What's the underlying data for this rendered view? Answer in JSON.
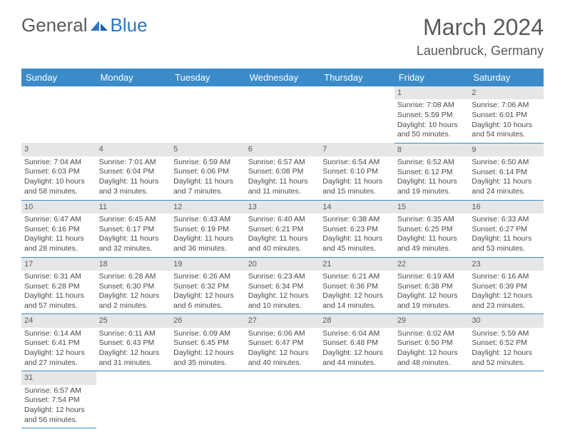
{
  "logo": {
    "text1": "General",
    "text2": "Blue"
  },
  "title": "March 2024",
  "location": "Lauenbruck, Germany",
  "colors": {
    "header_bg": "#3b8bc9",
    "header_text": "#ffffff",
    "daynum_bg": "#e6e6e6",
    "border": "#3b8bc9",
    "text": "#4a4a4a",
    "logo_accent": "#2b77c0"
  },
  "weekdays": [
    "Sunday",
    "Monday",
    "Tuesday",
    "Wednesday",
    "Thursday",
    "Friday",
    "Saturday"
  ],
  "weeks": [
    [
      null,
      null,
      null,
      null,
      null,
      {
        "d": "1",
        "sunrise": "7:08 AM",
        "sunset": "5:59 PM",
        "daylight": "10 hours and 50 minutes."
      },
      {
        "d": "2",
        "sunrise": "7:06 AM",
        "sunset": "6:01 PM",
        "daylight": "10 hours and 54 minutes."
      }
    ],
    [
      {
        "d": "3",
        "sunrise": "7:04 AM",
        "sunset": "6:03 PM",
        "daylight": "10 hours and 58 minutes."
      },
      {
        "d": "4",
        "sunrise": "7:01 AM",
        "sunset": "6:04 PM",
        "daylight": "11 hours and 3 minutes."
      },
      {
        "d": "5",
        "sunrise": "6:59 AM",
        "sunset": "6:06 PM",
        "daylight": "11 hours and 7 minutes."
      },
      {
        "d": "6",
        "sunrise": "6:57 AM",
        "sunset": "6:08 PM",
        "daylight": "11 hours and 11 minutes."
      },
      {
        "d": "7",
        "sunrise": "6:54 AM",
        "sunset": "6:10 PM",
        "daylight": "11 hours and 15 minutes."
      },
      {
        "d": "8",
        "sunrise": "6:52 AM",
        "sunset": "6:12 PM",
        "daylight": "11 hours and 19 minutes."
      },
      {
        "d": "9",
        "sunrise": "6:50 AM",
        "sunset": "6:14 PM",
        "daylight": "11 hours and 24 minutes."
      }
    ],
    [
      {
        "d": "10",
        "sunrise": "6:47 AM",
        "sunset": "6:16 PM",
        "daylight": "11 hours and 28 minutes."
      },
      {
        "d": "11",
        "sunrise": "6:45 AM",
        "sunset": "6:17 PM",
        "daylight": "11 hours and 32 minutes."
      },
      {
        "d": "12",
        "sunrise": "6:43 AM",
        "sunset": "6:19 PM",
        "daylight": "11 hours and 36 minutes."
      },
      {
        "d": "13",
        "sunrise": "6:40 AM",
        "sunset": "6:21 PM",
        "daylight": "11 hours and 40 minutes."
      },
      {
        "d": "14",
        "sunrise": "6:38 AM",
        "sunset": "6:23 PM",
        "daylight": "11 hours and 45 minutes."
      },
      {
        "d": "15",
        "sunrise": "6:35 AM",
        "sunset": "6:25 PM",
        "daylight": "11 hours and 49 minutes."
      },
      {
        "d": "16",
        "sunrise": "6:33 AM",
        "sunset": "6:27 PM",
        "daylight": "11 hours and 53 minutes."
      }
    ],
    [
      {
        "d": "17",
        "sunrise": "6:31 AM",
        "sunset": "6:28 PM",
        "daylight": "11 hours and 57 minutes."
      },
      {
        "d": "18",
        "sunrise": "6:28 AM",
        "sunset": "6:30 PM",
        "daylight": "12 hours and 2 minutes."
      },
      {
        "d": "19",
        "sunrise": "6:26 AM",
        "sunset": "6:32 PM",
        "daylight": "12 hours and 6 minutes."
      },
      {
        "d": "20",
        "sunrise": "6:23 AM",
        "sunset": "6:34 PM",
        "daylight": "12 hours and 10 minutes."
      },
      {
        "d": "21",
        "sunrise": "6:21 AM",
        "sunset": "6:36 PM",
        "daylight": "12 hours and 14 minutes."
      },
      {
        "d": "22",
        "sunrise": "6:19 AM",
        "sunset": "6:38 PM",
        "daylight": "12 hours and 19 minutes."
      },
      {
        "d": "23",
        "sunrise": "6:16 AM",
        "sunset": "6:39 PM",
        "daylight": "12 hours and 23 minutes."
      }
    ],
    [
      {
        "d": "24",
        "sunrise": "6:14 AM",
        "sunset": "6:41 PM",
        "daylight": "12 hours and 27 minutes."
      },
      {
        "d": "25",
        "sunrise": "6:11 AM",
        "sunset": "6:43 PM",
        "daylight": "12 hours and 31 minutes."
      },
      {
        "d": "26",
        "sunrise": "6:09 AM",
        "sunset": "6:45 PM",
        "daylight": "12 hours and 35 minutes."
      },
      {
        "d": "27",
        "sunrise": "6:06 AM",
        "sunset": "6:47 PM",
        "daylight": "12 hours and 40 minutes."
      },
      {
        "d": "28",
        "sunrise": "6:04 AM",
        "sunset": "6:48 PM",
        "daylight": "12 hours and 44 minutes."
      },
      {
        "d": "29",
        "sunrise": "6:02 AM",
        "sunset": "6:50 PM",
        "daylight": "12 hours and 48 minutes."
      },
      {
        "d": "30",
        "sunrise": "5:59 AM",
        "sunset": "6:52 PM",
        "daylight": "12 hours and 52 minutes."
      }
    ],
    [
      {
        "d": "31",
        "sunrise": "6:57 AM",
        "sunset": "7:54 PM",
        "daylight": "12 hours and 56 minutes."
      },
      null,
      null,
      null,
      null,
      null,
      null
    ]
  ]
}
